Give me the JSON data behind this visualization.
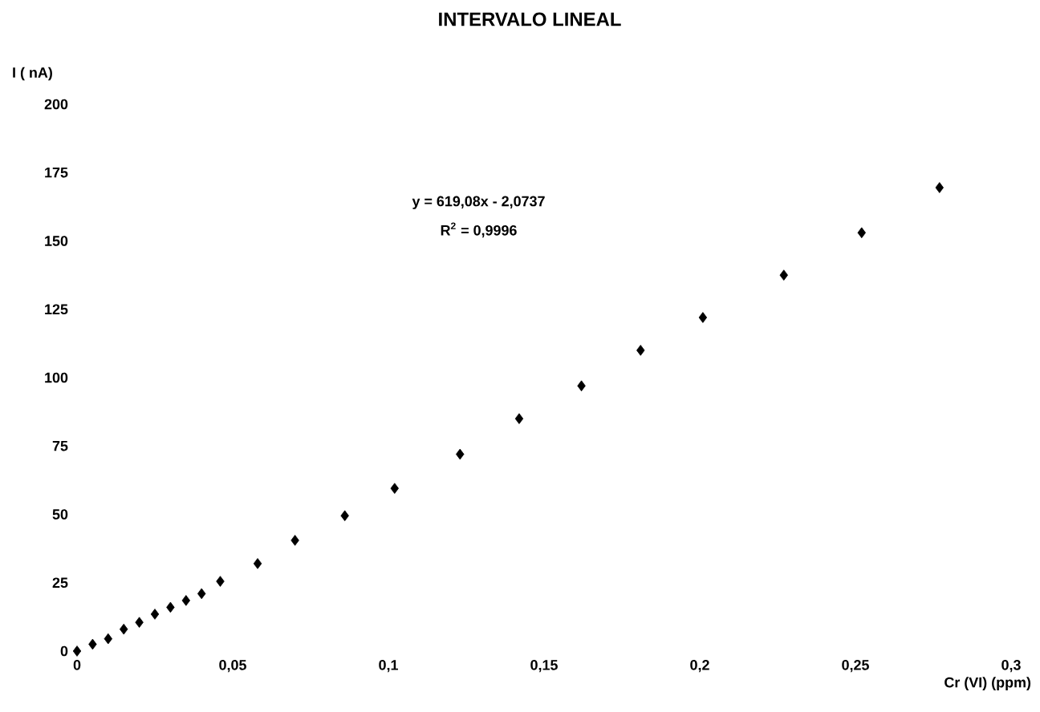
{
  "chart_data": {
    "type": "scatter",
    "title": "INTERVALO LINEAL",
    "xlabel": "Cr (VI) (ppm)",
    "ylabel": "I ( nA)",
    "x": [
      0,
      0.005,
      0.01,
      0.015,
      0.02,
      0.025,
      0.03,
      0.035,
      0.04,
      0.046,
      0.058,
      0.07,
      0.086,
      0.102,
      0.123,
      0.142,
      0.162,
      0.181,
      0.201,
      0.227,
      0.252,
      0.277
    ],
    "series": [
      {
        "color": "#000000",
        "values": [
          0,
          2.5,
          4.5,
          8,
          10.5,
          13.5,
          16,
          18.5,
          21,
          25.5,
          32,
          40.5,
          49.5,
          59.5,
          72,
          85,
          97,
          110,
          122,
          137.5,
          153,
          169.5
        ]
      }
    ],
    "xlim": [
      0,
      0.3
    ],
    "ylim": [
      0,
      200
    ],
    "xticks": [
      0,
      {
        "value": 0.05,
        "label": "0,05"
      },
      {
        "value": 0.1,
        "label": "0,1"
      },
      {
        "value": 0.15,
        "label": "0,15"
      },
      {
        "value": 0.2,
        "label": "0,2"
      },
      {
        "value": 0.25,
        "label": "0,25"
      },
      {
        "value": 0.3,
        "label": "0,3"
      }
    ],
    "yticks": [
      0,
      25,
      50,
      75,
      100,
      125,
      150,
      175,
      200
    ],
    "annotations": [
      "y = 619,08x - 2,0737",
      "R$^{2}$ = 0,9996"
    ],
    "marker": "diamond"
  }
}
